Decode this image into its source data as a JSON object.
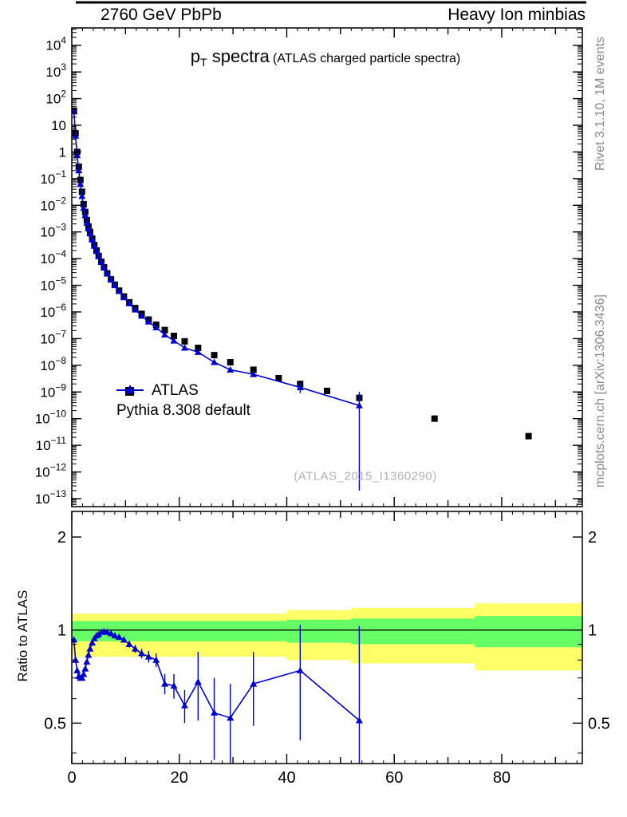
{
  "header": {
    "left": "2760 GeV PbPb",
    "right": "Heavy Ion minbias"
  },
  "side_labels": {
    "top_right": "Rivet 3.1.10, 1M events",
    "bottom_right": "mcplots.cern.ch [arXiv:1306.3436]"
  },
  "title": {
    "pre": "p",
    "sub": "T",
    "post": " spectra",
    "paren": "(ATLAS charged particle spectra)"
  },
  "legend": {
    "items": [
      {
        "label": "ATLAS"
      },
      {
        "label": "Pythia 8.308 default"
      }
    ]
  },
  "watermark": "(ATLAS_2015_I1360290)",
  "ratio_ylabel": "Ratio to ATLAS",
  "colors": {
    "atlas": "#000000",
    "pythia": "#0000cc",
    "band_yellow": "#ffff66",
    "band_green": "#66ff66",
    "frame": "#000000",
    "gray_text": "#8a8a8a",
    "watermark": "#b2b2b2"
  },
  "chart_data": {
    "type": "line",
    "xlabel": "",
    "xlim": [
      0,
      95
    ],
    "xticks": [
      0,
      20,
      40,
      60,
      80
    ],
    "x_minor_step": 2,
    "x_medium_step": 10,
    "panels": [
      {
        "name": "spectrum",
        "yscale": "log",
        "ylim_exp": [
          -13.3,
          4.65
        ],
        "ytick_exponents": [
          4,
          3,
          2,
          1,
          0,
          -1,
          -2,
          -3,
          -4,
          -5,
          -6,
          -7,
          -8,
          -9,
          -10,
          -11,
          -12,
          -13
        ],
        "series": [
          {
            "name": "ATLAS",
            "marker": "square",
            "color": "#000000",
            "x": [
              0.4,
              0.7,
              1.0,
              1.3,
              1.6,
              1.9,
              2.2,
              2.5,
              2.8,
              3.1,
              3.4,
              3.8,
              4.2,
              4.6,
              5.0,
              5.5,
              6.0,
              6.6,
              7.3,
              8.0,
              8.8,
              9.7,
              10.7,
              11.8,
              13.0,
              14.3,
              15.7,
              17.3,
              19.0,
              21.0,
              23.5,
              26.5,
              29.5,
              33.8,
              38.5,
              42.5,
              47.5,
              53.5,
              67.5,
              85.0
            ],
            "y": [
              35,
              5.0,
              1.0,
              0.28,
              0.089,
              0.032,
              0.011,
              0.0056,
              0.0028,
              0.0016,
              0.001,
              0.00056,
              0.00032,
              0.0002,
              0.000126,
              7.6e-05,
              4.7e-05,
              2.8e-05,
              1.66e-05,
              1.05e-05,
              6.3e-06,
              3.8e-06,
              2.3e-06,
              1.4e-06,
              8.5e-07,
              5.2e-07,
              3.3e-07,
              2.1e-07,
              1.26e-07,
              7.9e-08,
              4.5e-08,
              2.4e-08,
              1.3e-08,
              6.8e-09,
              3.3e-09,
              2e-09,
              1.1e-09,
              6e-10,
              1e-10,
              2.2e-11
            ]
          },
          {
            "name": "Pythia 8.308 default",
            "marker": "triangle-up",
            "color": "#0000cc",
            "line": true,
            "x": [
              0.4,
              0.7,
              1.0,
              1.3,
              1.6,
              1.9,
              2.2,
              2.5,
              2.8,
              3.1,
              3.4,
              3.8,
              4.2,
              4.6,
              5.0,
              5.5,
              6.0,
              6.6,
              7.3,
              8.0,
              8.8,
              9.7,
              10.7,
              11.8,
              13.0,
              14.3,
              15.7,
              17.3,
              19.0,
              21.0,
              23.5,
              26.5,
              29.5,
              33.8,
              42.5,
              53.5
            ],
            "y": [
              32.6,
              4.0,
              0.74,
              0.2,
              0.062,
              0.022,
              0.0079,
              0.0042,
              0.0022,
              0.00133,
              0.00087,
              0.00051,
              0.0003,
              0.00019,
              0.000122,
              7.5e-05,
              4.65e-05,
              2.76e-05,
              1.62e-05,
              1e-05,
              6e-06,
              3.5e-06,
              2.07e-06,
              1.22e-06,
              7.1e-07,
              4.3e-07,
              2.6e-07,
              1.4e-07,
              8.3e-08,
              4.5e-08,
              3.1e-08,
              1.3e-08,
              6.8e-09,
              4.6e-09,
              1.48e-09,
              3.1e-10
            ],
            "error_bars": [
              {
                "x": 42.5,
                "lo": 9e-10,
                "hi": 2.3e-09
              },
              {
                "x": 53.5,
                "lo": 2e-13,
                "hi": 1e-09
              }
            ]
          }
        ]
      },
      {
        "name": "ratio",
        "yscale": "log",
        "ylim": [
          0.37,
          2.42
        ],
        "yticks": [
          0.5,
          1,
          2
        ],
        "yticks_minor": [
          0.4,
          0.6,
          0.7,
          0.8,
          0.9
        ],
        "reference_line": 1,
        "bands": {
          "yellow": [
            {
              "x0": 0,
              "x1": 40,
              "lo": 0.82,
              "hi": 1.13
            },
            {
              "x0": 40,
              "x1": 52,
              "lo": 0.8,
              "hi": 1.16
            },
            {
              "x0": 52,
              "x1": 75,
              "lo": 0.78,
              "hi": 1.18
            },
            {
              "x0": 75,
              "x1": 95,
              "lo": 0.74,
              "hi": 1.22
            }
          ],
          "green": [
            {
              "x0": 0,
              "x1": 40,
              "lo": 0.92,
              "hi": 1.07
            },
            {
              "x0": 40,
              "x1": 52,
              "lo": 0.91,
              "hi": 1.08
            },
            {
              "x0": 52,
              "x1": 75,
              "lo": 0.9,
              "hi": 1.09
            },
            {
              "x0": 75,
              "x1": 95,
              "lo": 0.88,
              "hi": 1.11
            }
          ]
        },
        "series": [
          {
            "name": "Pythia/ATLAS",
            "marker": "triangle-up",
            "color": "#0000cc",
            "line": true,
            "x": [
              0.4,
              0.7,
              1.0,
              1.3,
              1.6,
              1.9,
              2.2,
              2.5,
              2.8,
              3.1,
              3.4,
              3.8,
              4.2,
              4.6,
              5.0,
              5.5,
              6.0,
              6.6,
              7.3,
              8.0,
              8.8,
              9.7,
              10.7,
              11.8,
              13.0,
              14.3,
              15.7,
              17.3,
              19.0,
              21.0,
              23.5,
              26.5,
              29.5,
              33.8,
              42.5,
              53.5
            ],
            "y": [
              0.93,
              0.8,
              0.74,
              0.71,
              0.7,
              0.7,
              0.72,
              0.75,
              0.79,
              0.83,
              0.87,
              0.91,
              0.94,
              0.96,
              0.97,
              0.985,
              0.99,
              0.985,
              0.975,
              0.96,
              0.95,
              0.93,
              0.9,
              0.87,
              0.84,
              0.82,
              0.8,
              0.67,
              0.66,
              0.57,
              0.68,
              0.54,
              0.52,
              0.67,
              0.74,
              0.51
            ],
            "yerr": [
              0.008,
              0.008,
              0.008,
              0.008,
              0.008,
              0.008,
              0.008,
              0.008,
              0.008,
              0.008,
              0.008,
              0.008,
              0.009,
              0.009,
              0.01,
              0.01,
              0.01,
              0.012,
              0.013,
              0.015,
              0.017,
              0.02,
              0.022,
              0.026,
              0.03,
              0.035,
              0.04,
              0.05,
              0.06,
              0.07,
              0.17,
              0.16,
              0.15,
              0.18,
              0.3,
              0.52
            ]
          }
        ]
      }
    ]
  }
}
